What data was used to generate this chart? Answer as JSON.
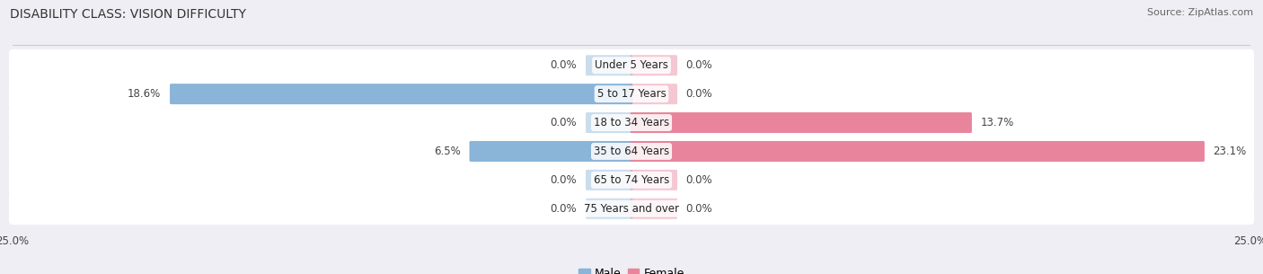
{
  "title": "DISABILITY CLASS: VISION DIFFICULTY",
  "source": "Source: ZipAtlas.com",
  "categories": [
    "Under 5 Years",
    "5 to 17 Years",
    "18 to 34 Years",
    "35 to 64 Years",
    "65 to 74 Years",
    "75 Years and over"
  ],
  "male_values": [
    0.0,
    18.6,
    0.0,
    6.5,
    0.0,
    0.0
  ],
  "female_values": [
    0.0,
    0.0,
    13.7,
    23.1,
    0.0,
    0.0
  ],
  "male_color": "#8ab4d8",
  "female_color": "#e8849c",
  "male_label": "Male",
  "female_label": "Female",
  "xlim": 25.0,
  "background_color": "#eeeef4",
  "row_bg_color": "#ffffff",
  "title_fontsize": 10,
  "source_fontsize": 8,
  "value_fontsize": 8.5,
  "category_fontsize": 8.5,
  "legend_fontsize": 9,
  "stub_size": 1.8
}
